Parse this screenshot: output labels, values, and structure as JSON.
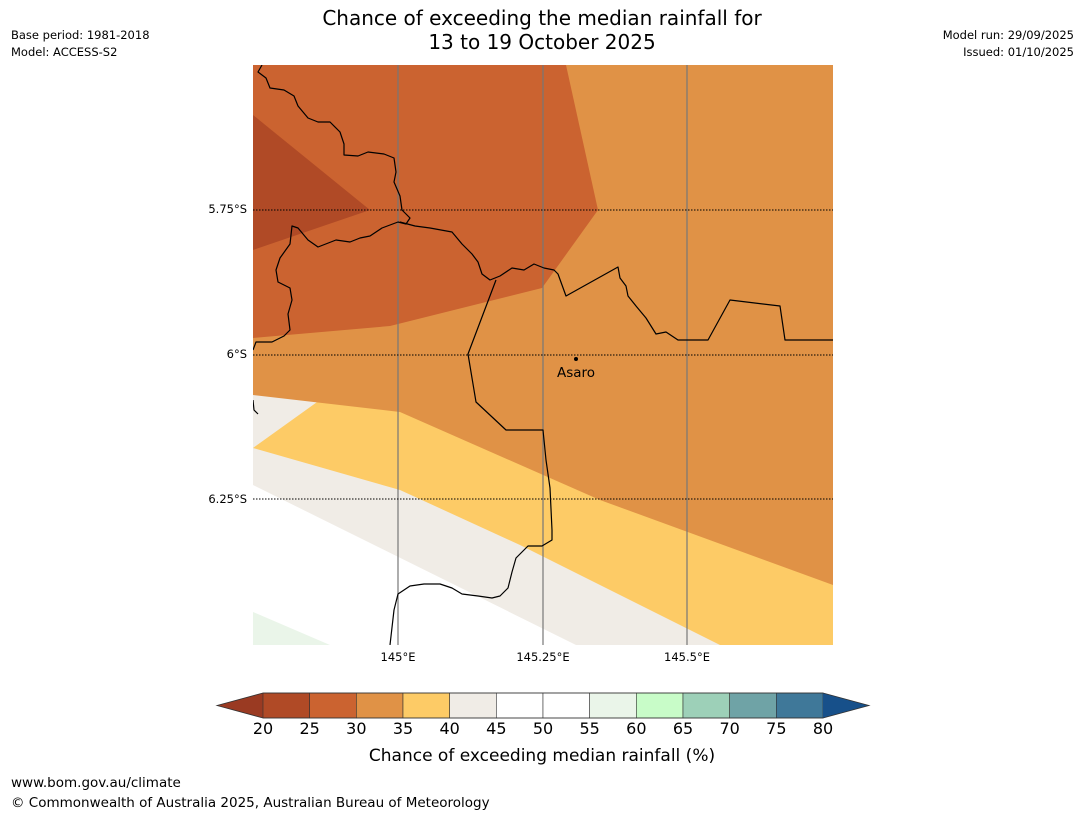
{
  "title_line1": "Chance of exceeding the median rainfall for",
  "title_line2": "13 to 19 October 2025",
  "base_period": "Base period: 1981-2018",
  "model": "Model: ACCESS-S2",
  "model_run": "Model run: 29/09/2025",
  "issued": "Issued: 01/10/2025",
  "latitude_labels": [
    "5.75°S",
    "6°S",
    "6.25°S"
  ],
  "longitude_labels": [
    "145°E",
    "145.25°E",
    "145.5°E"
  ],
  "place": {
    "name": "Asaro"
  },
  "colorbar": {
    "ticks": [
      "20",
      "25",
      "30",
      "35",
      "40",
      "45",
      "50",
      "55",
      "60",
      "65",
      "70",
      "75",
      "80"
    ],
    "label": "Chance of exceeding median rainfall (%)",
    "colors": [
      "#9a3a22",
      "#b04a26",
      "#cb6330",
      "#e09246",
      "#fdcb66",
      "#f0ece6",
      "#ffffff",
      "#ffffff",
      "#eaf5e9",
      "#c8fcc8",
      "#9dd0b8",
      "#6fa3a6",
      "#3f7899",
      "#17508a"
    ]
  },
  "map_colors": {
    "band_20_25": "#b04a26",
    "band_25_30": "#cb6330",
    "band_30_35": "#e09246",
    "band_35_40": "#fdcb66",
    "band_40_45": "#f0ece6",
    "band_45_55": "#ffffff",
    "band_55_60": "#eaf5e9"
  },
  "footer_url": "www.bom.gov.au/climate",
  "footer_copyright": "© Commonwealth of Australia 2025, Australian Bureau of Meteorology"
}
